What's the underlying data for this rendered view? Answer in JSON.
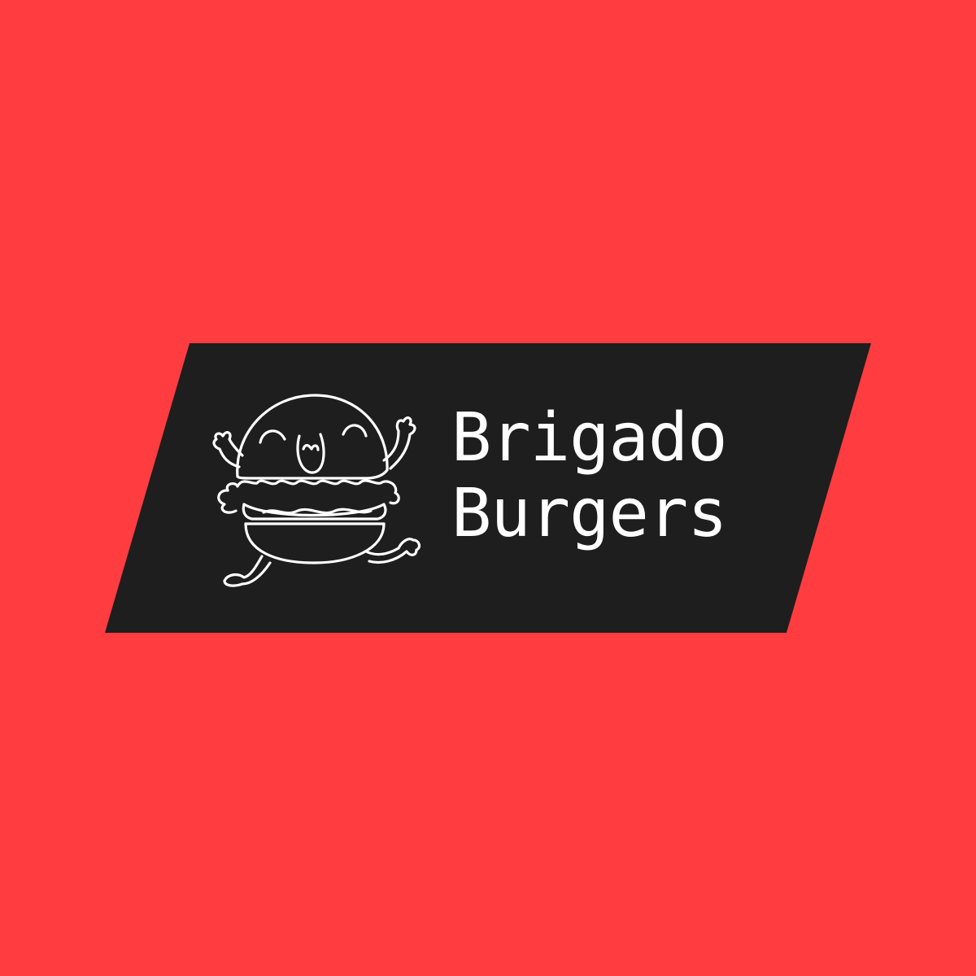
{
  "colors": {
    "background": "#ff3c3f",
    "banner": "#1e1e1e",
    "foreground": "#ffffff"
  },
  "logo": {
    "mascot_icon": "happy-burger-mascot-icon",
    "name_line1": "Brigado",
    "name_line2": "Burgers"
  }
}
